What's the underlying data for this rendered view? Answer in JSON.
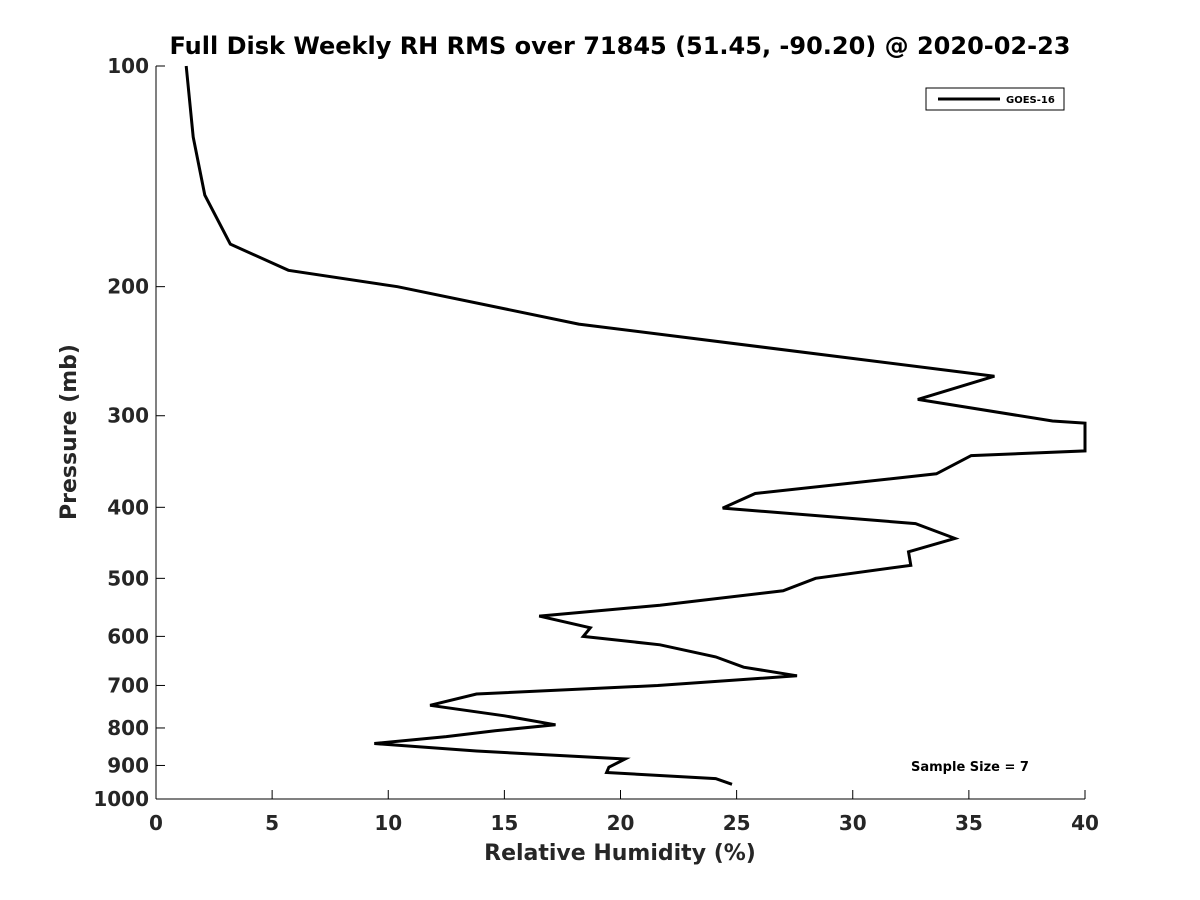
{
  "chart_data": {
    "type": "line",
    "title": "Full Disk Weekly RH RMS over 71845 (51.45, -90.20) @ 2020-02-23",
    "xlabel": "Relative Humidity (%)",
    "ylabel": "Pressure (mb)",
    "xlim": [
      0,
      40
    ],
    "ylim": [
      100,
      1000
    ],
    "y_scale": "log",
    "y_reversed": true,
    "grid": false,
    "legend_position": "top-right",
    "x_ticks": [
      0,
      5,
      10,
      15,
      20,
      25,
      30,
      35,
      40
    ],
    "y_ticks": [
      100,
      200,
      300,
      400,
      500,
      600,
      700,
      800,
      900,
      1000
    ],
    "annotations": [
      "Sample Size = 7"
    ],
    "series": [
      {
        "name": "GOES-16",
        "color": "#000000",
        "points": [
          [
            1.3,
            100
          ],
          [
            1.6,
            125
          ],
          [
            2.1,
            150
          ],
          [
            3.2,
            175
          ],
          [
            5.7,
            190
          ],
          [
            10.4,
            200
          ],
          [
            18.2,
            225
          ],
          [
            36.1,
            265
          ],
          [
            32.8,
            285
          ],
          [
            38.6,
            305
          ],
          [
            40,
            307
          ],
          [
            40,
            335
          ],
          [
            35.1,
            340
          ],
          [
            33.6,
            360
          ],
          [
            25.8,
            383
          ],
          [
            24.4,
            401
          ],
          [
            32.7,
            421
          ],
          [
            34.4,
            441
          ],
          [
            32.4,
            460
          ],
          [
            32.5,
            480
          ],
          [
            28.4,
            500
          ],
          [
            27.0,
            520
          ],
          [
            21.7,
            544
          ],
          [
            16.5,
            563
          ],
          [
            18.7,
            584
          ],
          [
            18.4,
            600
          ],
          [
            21.7,
            616
          ],
          [
            24.1,
            640
          ],
          [
            25.3,
            661
          ],
          [
            27.6,
            679
          ],
          [
            21.6,
            700
          ],
          [
            13.8,
            719
          ],
          [
            11.8,
            745
          ],
          [
            15.0,
            770
          ],
          [
            17.2,
            792
          ],
          [
            14.6,
            807
          ],
          [
            12.5,
            822
          ],
          [
            9.4,
            840
          ],
          [
            13.8,
            860
          ],
          [
            20.2,
            882
          ],
          [
            19.5,
            905
          ],
          [
            19.4,
            920
          ],
          [
            24.1,
            938
          ],
          [
            24.8,
            955
          ]
        ]
      }
    ]
  }
}
